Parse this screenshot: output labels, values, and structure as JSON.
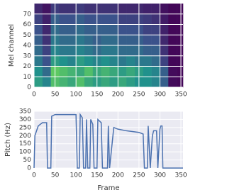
{
  "chart_data": [
    {
      "type": "heatmap",
      "y_label": "Mel channel",
      "colormap": "viridis",
      "grid": true,
      "xlim": [
        0,
        355
      ],
      "ylim": [
        0,
        80
      ],
      "xticks": [
        0,
        50,
        100,
        150,
        200,
        250,
        300,
        350
      ],
      "yticks": [
        0,
        10,
        20,
        30,
        40,
        50,
        60,
        70
      ],
      "x_bins": [
        0,
        20,
        40,
        60,
        80,
        100,
        120,
        140,
        160,
        180,
        200,
        220,
        240,
        260,
        280,
        300,
        320,
        340,
        355
      ],
      "y_bins": [
        0,
        10,
        20,
        30,
        40,
        50,
        60,
        70,
        80
      ],
      "z": [
        [
          0.55,
          0.45,
          0.7,
          0.65,
          0.6,
          0.7,
          0.6,
          0.55,
          0.6,
          0.55,
          0.6,
          0.55,
          0.5,
          0.5,
          0.45,
          0.3,
          0.03,
          0.02
        ],
        [
          0.5,
          0.35,
          0.75,
          0.7,
          0.65,
          0.6,
          0.7,
          0.6,
          0.65,
          0.6,
          0.55,
          0.6,
          0.55,
          0.5,
          0.45,
          0.3,
          0.03,
          0.02
        ],
        [
          0.4,
          0.25,
          0.55,
          0.5,
          0.45,
          0.55,
          0.5,
          0.45,
          0.5,
          0.45,
          0.4,
          0.45,
          0.4,
          0.4,
          0.35,
          0.2,
          0.02,
          0.02
        ],
        [
          0.35,
          0.2,
          0.45,
          0.4,
          0.4,
          0.45,
          0.4,
          0.35,
          0.4,
          0.4,
          0.35,
          0.35,
          0.35,
          0.3,
          0.3,
          0.15,
          0.02,
          0.02
        ],
        [
          0.3,
          0.15,
          0.4,
          0.35,
          0.35,
          0.4,
          0.35,
          0.3,
          0.35,
          0.35,
          0.3,
          0.3,
          0.3,
          0.25,
          0.25,
          0.12,
          0.02,
          0.02
        ],
        [
          0.25,
          0.12,
          0.35,
          0.3,
          0.3,
          0.35,
          0.3,
          0.3,
          0.3,
          0.3,
          0.25,
          0.25,
          0.25,
          0.2,
          0.2,
          0.1,
          0.02,
          0.02
        ],
        [
          0.2,
          0.1,
          0.3,
          0.25,
          0.25,
          0.3,
          0.25,
          0.25,
          0.25,
          0.25,
          0.2,
          0.2,
          0.2,
          0.18,
          0.15,
          0.08,
          0.02,
          0.02
        ],
        [
          0.12,
          0.06,
          0.18,
          0.15,
          0.15,
          0.18,
          0.15,
          0.15,
          0.15,
          0.15,
          0.12,
          0.12,
          0.12,
          0.1,
          0.1,
          0.05,
          0.02,
          0.02
        ]
      ]
    },
    {
      "type": "line",
      "x_label": "Frame",
      "y_label": "Pitch (Hz)",
      "grid": true,
      "color": "#4c72b0",
      "xlim": [
        0,
        355
      ],
      "ylim": [
        0,
        350
      ],
      "xticks": [
        0,
        50,
        100,
        150,
        200,
        250,
        300,
        350
      ],
      "yticks": [
        0,
        50,
        100,
        150,
        200,
        250,
        300,
        350
      ],
      "x": [
        0,
        2,
        10,
        20,
        30,
        32,
        40,
        42,
        50,
        100,
        103,
        108,
        110,
        115,
        118,
        123,
        125,
        128,
        133,
        135,
        140,
        143,
        150,
        152,
        160,
        163,
        175,
        177,
        180,
        190,
        200,
        220,
        250,
        260,
        263,
        270,
        272,
        277,
        282,
        285,
        292,
        295,
        300,
        302,
        305,
        307,
        355
      ],
      "values": [
        0,
        200,
        260,
        280,
        280,
        0,
        0,
        320,
        330,
        330,
        0,
        0,
        330,
        310,
        0,
        0,
        300,
        0,
        0,
        300,
        270,
        0,
        0,
        300,
        280,
        0,
        0,
        260,
        0,
        250,
        240,
        230,
        220,
        210,
        0,
        0,
        260,
        0,
        200,
        230,
        230,
        0,
        240,
        260,
        260,
        0,
        0
      ]
    }
  ]
}
